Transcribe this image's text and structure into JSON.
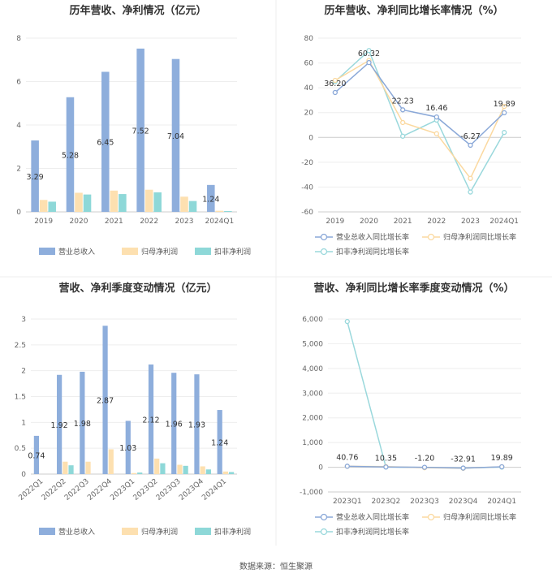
{
  "colors": {
    "revenue": "#8eaedc",
    "net_profit": "#fde0b0",
    "deducted_profit": "#8ed8d8",
    "revenue_line": "#8aa8d8",
    "net_profit_line": "#fbd9a0",
    "deducted_line": "#9ad8dc"
  },
  "source": "数据来源：恒生聚源",
  "chart_data": [
    {
      "id": "annual-bar",
      "type": "bar",
      "title": "历年营收、净利情况（亿元）",
      "categories": [
        "2019",
        "2020",
        "2021",
        "2022",
        "2023",
        "2024Q1"
      ],
      "ylim": [
        0,
        8
      ],
      "yticks": [
        0,
        2,
        4,
        6,
        8
      ],
      "label_series": 0,
      "series": [
        {
          "name": "营业总收入",
          "values": [
            3.29,
            5.28,
            6.45,
            7.52,
            7.04,
            1.24
          ],
          "labels": [
            "3.29",
            "5.28",
            "6.45",
            "7.52",
            "7.04",
            "1.24"
          ]
        },
        {
          "name": "归母净利润",
          "values": [
            0.55,
            0.88,
            0.98,
            1.02,
            0.7,
            0.05
          ]
        },
        {
          "name": "扣非净利润",
          "values": [
            0.47,
            0.8,
            0.82,
            0.9,
            0.5,
            0.04
          ]
        }
      ],
      "legend": "bottom"
    },
    {
      "id": "annual-line",
      "type": "line",
      "title": "历年营收、净利同比增长率情况（%）",
      "categories": [
        "2019",
        "2020",
        "2021",
        "2022",
        "2023",
        "2024Q1"
      ],
      "ylim": [
        -60,
        80
      ],
      "yticks": [
        -60,
        -40,
        -20,
        0,
        20,
        40,
        60,
        80
      ],
      "label_series": 0,
      "series": [
        {
          "name": "营业总收入同比增长率",
          "values": [
            36.2,
            60.32,
            22.23,
            16.46,
            -6.27,
            19.89
          ],
          "labels": [
            "36.20",
            "60.32",
            "22.23",
            "16.46",
            "-6.27",
            "19.89"
          ]
        },
        {
          "name": "归母净利润同比增长率",
          "values": [
            46,
            62,
            12,
            3,
            -33,
            25
          ]
        },
        {
          "name": "扣非净利润同比增长率",
          "values": [
            45,
            70,
            1,
            14,
            -44,
            4
          ]
        }
      ],
      "legend": "bottom"
    },
    {
      "id": "quarter-bar",
      "type": "bar",
      "title": "营收、净利季度变动情况（亿元）",
      "categories": [
        "2022Q1",
        "2022Q2",
        "2022Q3",
        "2022Q4",
        "2023Q1",
        "2023Q2",
        "2023Q3",
        "2023Q4",
        "2024Q1"
      ],
      "ylim": [
        0,
        3
      ],
      "yticks": [
        0,
        0.5,
        1,
        1.5,
        2,
        2.5,
        3
      ],
      "label_series": 0,
      "series": [
        {
          "name": "营业总收入",
          "values": [
            0.74,
            1.92,
            1.98,
            2.87,
            1.03,
            2.12,
            1.96,
            1.93,
            1.24
          ],
          "labels": [
            "0.74",
            "1.92",
            "1.98",
            "2.87",
            "1.03",
            "2.12",
            "1.96",
            "1.93",
            "1.24"
          ]
        },
        {
          "name": "归母净利润",
          "values": [
            0.0,
            0.24,
            0.24,
            0.48,
            0.02,
            0.3,
            0.18,
            0.15,
            0.05
          ]
        },
        {
          "name": "扣非净利润",
          "values": [
            0.0,
            0.17,
            0.0,
            0.0,
            0.03,
            0.21,
            0.16,
            0.09,
            0.04
          ]
        }
      ],
      "legend": "bottom"
    },
    {
      "id": "quarter-line",
      "type": "line",
      "title": "营收、净利同比增长率季度变动情况（%）",
      "categories": [
        "2023Q1",
        "2023Q2",
        "2023Q3",
        "2023Q4",
        "2024Q1"
      ],
      "ylim": [
        -1000,
        6000
      ],
      "yticks": [
        -1000,
        0,
        1000,
        2000,
        3000,
        4000,
        5000,
        6000
      ],
      "ytick_labels": [
        "-1,000",
        "0",
        "1,000",
        "2,000",
        "3,000",
        "4,000",
        "5,000",
        "6,000"
      ],
      "label_series": 0,
      "series": [
        {
          "name": "营业总收入同比增长率",
          "values": [
            40.76,
            10.35,
            -1.2,
            -32.91,
            19.89
          ],
          "labels": [
            "40.76",
            "10.35",
            "-1.20",
            "-32.91",
            "19.89"
          ]
        },
        {
          "name": "归母净利润同比增长率",
          "values": [
            40,
            25,
            -20,
            -40,
            20
          ]
        },
        {
          "name": "扣非净利润同比增长率",
          "values": [
            5900,
            10,
            -10,
            -35,
            5
          ]
        }
      ],
      "legend": "bottom"
    }
  ]
}
